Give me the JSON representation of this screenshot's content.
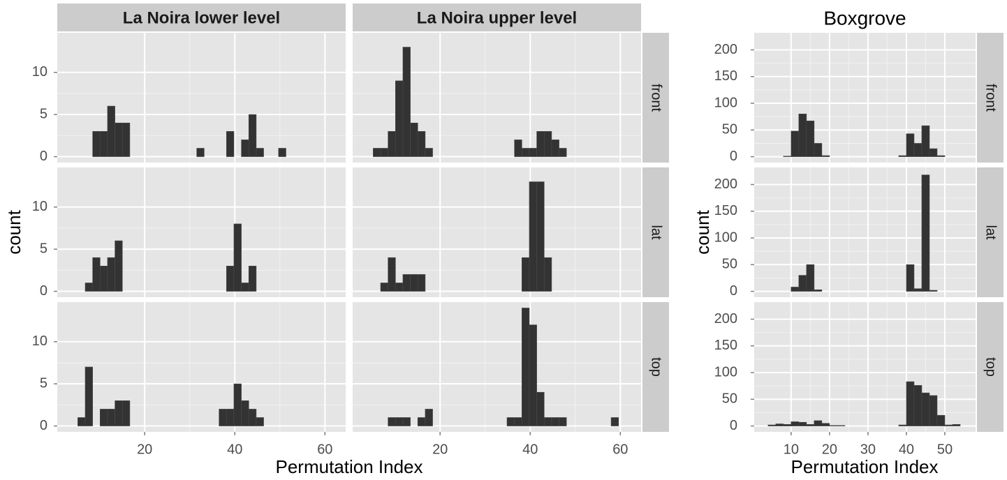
{
  "chart_data": [
    {
      "type": "histogram",
      "facet_columns": [
        "La Noira lower level",
        "La Noira upper level"
      ],
      "facet_rows": [
        "front",
        "lat",
        "top"
      ],
      "xlabel": "Permutation Index",
      "ylabel": "count",
      "bins": [
        3.5,
        5.15,
        6.8,
        8.45,
        10.1,
        11.75,
        13.4,
        15.05,
        16.7,
        18.35,
        20,
        21.65,
        23.3,
        24.95,
        26.6,
        28.25,
        29.9,
        31.55,
        33.2,
        34.85,
        36.5,
        38.15,
        39.8,
        41.45,
        43.1,
        44.75,
        46.4,
        48.05,
        49.7,
        51.35,
        53,
        54.65,
        56.3,
        57.95,
        59.6,
        61.25
      ],
      "panels": [
        {
          "counts": [
            0,
            0,
            0,
            3,
            3,
            6,
            4,
            4,
            0,
            0,
            0,
            0,
            0,
            0,
            0,
            0,
            0,
            1,
            0,
            0,
            0,
            3,
            0,
            2,
            5,
            1,
            0,
            0,
            1,
            0,
            0,
            0,
            0,
            0,
            0
          ]
        },
        {
          "counts": [
            0,
            1,
            1,
            3,
            9,
            13,
            4,
            3,
            1,
            0,
            0,
            0,
            0,
            0,
            0,
            0,
            0,
            0,
            0,
            0,
            2,
            1,
            1,
            3,
            3,
            2,
            1,
            0,
            0,
            0,
            0,
            0,
            0,
            0,
            0
          ]
        },
        {
          "counts": [
            0,
            0,
            1,
            4,
            3,
            4,
            6,
            0,
            0,
            0,
            0,
            0,
            0,
            0,
            0,
            0,
            0,
            0,
            0,
            0,
            0,
            3,
            8,
            1,
            3,
            0,
            0,
            0,
            0,
            0,
            0,
            0,
            0,
            0,
            0
          ]
        },
        {
          "counts": [
            0,
            0,
            1,
            4,
            1,
            2,
            2,
            2,
            0,
            0,
            0,
            0,
            0,
            0,
            0,
            0,
            0,
            0,
            0,
            0,
            0,
            4,
            13,
            13,
            4,
            0,
            0,
            0,
            0,
            0,
            0,
            0,
            0,
            0,
            0
          ]
        },
        {
          "counts": [
            0,
            1,
            7,
            0,
            2,
            2,
            3,
            3,
            0,
            0,
            0,
            0,
            0,
            0,
            0,
            0,
            0,
            0,
            0,
            0,
            2,
            2,
            5,
            3,
            2,
            1,
            0,
            0,
            0,
            0,
            0,
            0,
            0,
            0,
            0
          ]
        },
        {
          "counts": [
            0,
            0,
            0,
            1,
            1,
            1,
            0,
            1,
            2,
            0,
            0,
            0,
            0,
            0,
            0,
            0,
            0,
            0,
            0,
            1,
            1,
            14,
            12,
            4,
            1,
            1,
            1,
            0,
            0,
            0,
            0,
            0,
            0,
            1,
            0
          ]
        }
      ],
      "xlim": [
        0.6,
        64.6
      ],
      "xticks": [
        20,
        40,
        60
      ],
      "ylim": [
        -0.7,
        14.7
      ],
      "yticks": [
        0,
        5,
        10
      ],
      "color": "#333333",
      "grid": true
    },
    {
      "type": "histogram",
      "title": "Boxgrove",
      "facet_rows": [
        "front",
        "lat",
        "top"
      ],
      "xlabel": "Permutation Index",
      "ylabel": "count",
      "bins": [
        4,
        6,
        8,
        10,
        12,
        14,
        16,
        18,
        20,
        22,
        24,
        26,
        28,
        30,
        32,
        34,
        36,
        38,
        40,
        42,
        44,
        46,
        48,
        50,
        52,
        54
      ],
      "panels": [
        {
          "counts": [
            0,
            0,
            1,
            48,
            80,
            67,
            25,
            2,
            0,
            0,
            0,
            0,
            0,
            0,
            0,
            0,
            0,
            2,
            43,
            25,
            58,
            15,
            2,
            0,
            0
          ]
        },
        {
          "counts": [
            0,
            0,
            0,
            8,
            30,
            50,
            3,
            0,
            0,
            0,
            0,
            0,
            0,
            0,
            0,
            0,
            0,
            0,
            50,
            5,
            218,
            2,
            0,
            0,
            0
          ]
        },
        {
          "counts": [
            2,
            4,
            3,
            8,
            7,
            3,
            10,
            5,
            1,
            1,
            0,
            0,
            0,
            0,
            0,
            0,
            0,
            2,
            83,
            76,
            62,
            57,
            20,
            2,
            3
          ]
        }
      ],
      "xlim": [
        0.4,
        58
      ],
      "xticks": [
        10,
        20,
        30,
        40,
        50
      ],
      "ylim": [
        -11,
        232
      ],
      "yticks": [
        0,
        50,
        100,
        150,
        200
      ],
      "color": "#333333",
      "grid": true
    }
  ]
}
